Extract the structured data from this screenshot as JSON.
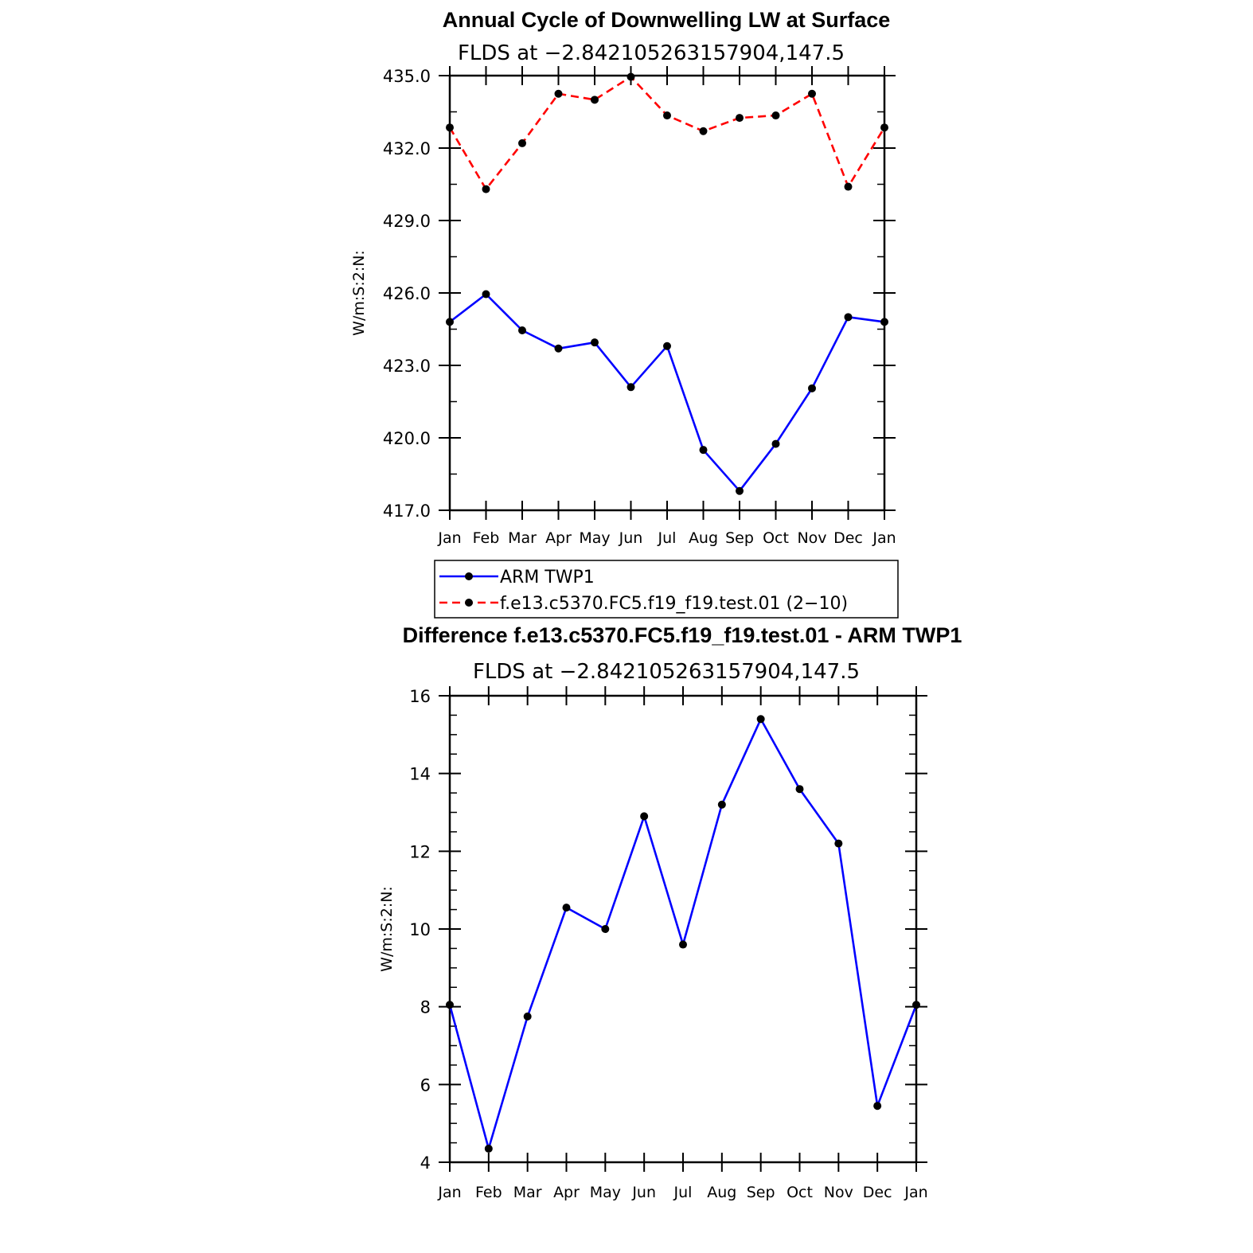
{
  "chart_data": [
    {
      "type": "line",
      "title": "Annual Cycle of Downwelling LW at Surface",
      "subtitle": "FLDS at −2.842105263157904,147.5",
      "ylabel": "W/m:S:2:N:",
      "xlabel": "",
      "categories": [
        "Jan",
        "Feb",
        "Mar",
        "Apr",
        "May",
        "Jun",
        "Jul",
        "Aug",
        "Sep",
        "Oct",
        "Nov",
        "Dec",
        "Jan"
      ],
      "ylim": [
        417.0,
        435.0
      ],
      "yticks": [
        "417.0",
        "420.0",
        "423.0",
        "426.0",
        "429.0",
        "432.0",
        "435.0"
      ],
      "grid": false,
      "legend_position": "bottom",
      "series": [
        {
          "name": "ARM TWP1",
          "color": "#0000ff",
          "dash": "solid",
          "values": [
            424.8,
            425.95,
            424.45,
            423.7,
            423.95,
            422.1,
            423.8,
            419.5,
            417.8,
            419.75,
            422.05,
            425.0,
            424.8
          ]
        },
        {
          "name": "f.e13.c5370.FC5.f19_f19.test.01 (2−10)",
          "color": "#ff0000",
          "dash": "dashed",
          "values": [
            432.85,
            430.3,
            432.2,
            434.25,
            434.0,
            434.95,
            433.35,
            432.7,
            433.25,
            433.35,
            434.25,
            430.4,
            432.85
          ]
        }
      ]
    },
    {
      "type": "line",
      "title": "Difference f.e13.c5370.FC5.f19_f19.test.01 - ARM TWP1",
      "subtitle": "FLDS at −2.842105263157904,147.5",
      "ylabel": "W/m:S:2:N:",
      "xlabel": "",
      "categories": [
        "Jan",
        "Feb",
        "Mar",
        "Apr",
        "May",
        "Jun",
        "Jul",
        "Aug",
        "Sep",
        "Oct",
        "Nov",
        "Dec",
        "Jan"
      ],
      "ylim": [
        4,
        16
      ],
      "yticks": [
        "4",
        "6",
        "8",
        "10",
        "12",
        "14",
        "16"
      ],
      "grid": false,
      "series": [
        {
          "color": "#0000ff",
          "dash": "solid",
          "values": [
            8.05,
            4.35,
            7.75,
            10.55,
            10.0,
            12.9,
            9.6,
            13.2,
            15.4,
            13.6,
            12.2,
            5.45,
            8.05
          ]
        }
      ]
    }
  ]
}
